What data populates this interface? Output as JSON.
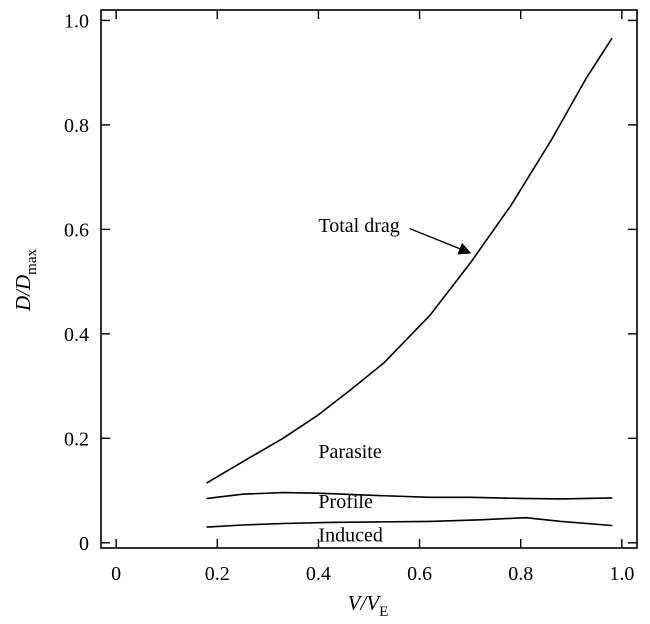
{
  "chart_data": {
    "type": "line",
    "xlabel": {
      "main": "V/V",
      "sub": "E"
    },
    "ylabel": {
      "main": "D/D",
      "sub": "max"
    },
    "xlim": [
      -0.03,
      1.03
    ],
    "ylim": [
      -0.01,
      1.02
    ],
    "x_ticks": [
      0,
      0.2,
      0.4,
      0.6,
      0.8,
      1.0
    ],
    "x_tick_labels": [
      "0",
      "0.2",
      "0.4",
      "0.6",
      "0.8",
      "1.0"
    ],
    "y_ticks": [
      0,
      0.2,
      0.4,
      0.6,
      0.8,
      1.0
    ],
    "y_tick_labels": [
      "0",
      "0.2",
      "0.4",
      "0.6",
      "0.8",
      "1.0"
    ],
    "grid": false,
    "series": [
      {
        "x": [
          0.18,
          0.25,
          0.33,
          0.4,
          0.46,
          0.53,
          0.62,
          0.7,
          0.78,
          0.86,
          0.93,
          0.98
        ],
        "y": [
          0.115,
          0.155,
          0.2,
          0.245,
          0.29,
          0.345,
          0.435,
          0.535,
          0.645,
          0.77,
          0.89,
          0.965
        ]
      },
      {
        "x": [
          0.18,
          0.25,
          0.33,
          0.4,
          0.5,
          0.62,
          0.7,
          0.8,
          0.88,
          0.98
        ],
        "y": [
          0.085,
          0.093,
          0.096,
          0.095,
          0.091,
          0.087,
          0.087,
          0.085,
          0.084,
          0.086
        ]
      },
      {
        "x": [
          0.18,
          0.25,
          0.33,
          0.42,
          0.52,
          0.62,
          0.72,
          0.81,
          0.88,
          0.98
        ],
        "y": [
          0.03,
          0.034,
          0.037,
          0.039,
          0.04,
          0.041,
          0.044,
          0.048,
          0.041,
          0.033
        ]
      }
    ],
    "annotations": [
      {
        "text": "Total drag",
        "x": 0.4,
        "y": 0.595,
        "arrow_to": [
          0.7,
          0.555
        ]
      },
      {
        "text": "Parasite",
        "x": 0.4,
        "y": 0.162
      },
      {
        "text": "Profile",
        "x": 0.4,
        "y": 0.067
      },
      {
        "text": "Induced",
        "x": 0.4,
        "y": 0.002
      }
    ]
  }
}
